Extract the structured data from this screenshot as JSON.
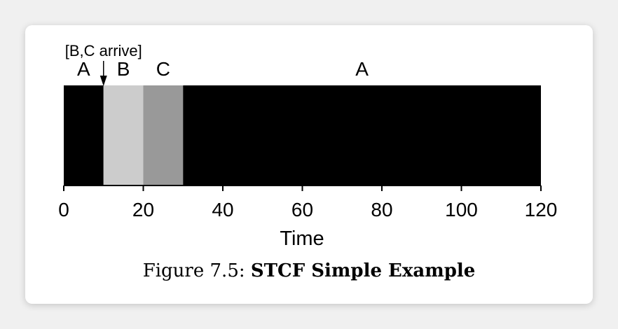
{
  "chart_data": {
    "type": "gantt",
    "title": "",
    "xlabel": "Time",
    "ylabel": "",
    "xlim": [
      0,
      120
    ],
    "xticks": [
      0,
      20,
      40,
      60,
      80,
      100,
      120
    ],
    "grid": false,
    "segments": [
      {
        "label": "A",
        "start": 0,
        "end": 10,
        "color": "#000000"
      },
      {
        "label": "B",
        "start": 10,
        "end": 20,
        "color": "#cccccc"
      },
      {
        "label": "C",
        "start": 20,
        "end": 30,
        "color": "#999999"
      },
      {
        "label": "A",
        "start": 30,
        "end": 120,
        "color": "#000000"
      }
    ],
    "annotations": [
      {
        "text": "[B,C arrive]",
        "x": 10
      }
    ]
  },
  "caption": {
    "prefix": "Figure 7.5:",
    "title": "STCF Simple Example"
  }
}
